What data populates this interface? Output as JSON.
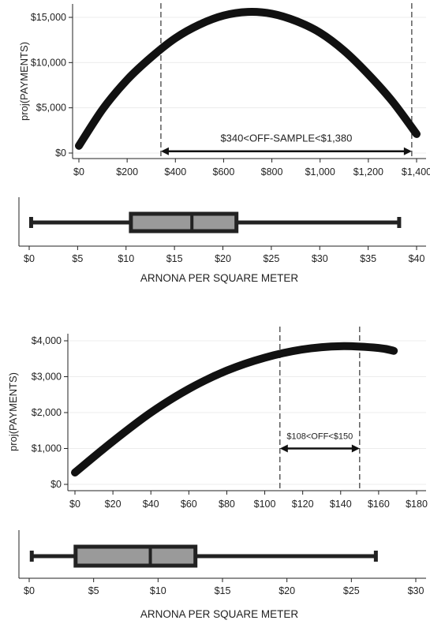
{
  "chart_data": [
    {
      "type": "line",
      "ylabel": "proj(PAYMENTS)",
      "xlim": [
        0,
        1400
      ],
      "ylim": [
        0,
        15000
      ],
      "x_ticks": [
        0,
        200,
        400,
        600,
        800,
        1000,
        1200,
        1400
      ],
      "x_tick_labels": [
        "$0",
        "$200",
        "$400",
        "$600",
        "$800",
        "$1,000",
        "$1,200",
        "$1,400"
      ],
      "y_ticks": [
        0,
        5000,
        10000,
        15000
      ],
      "y_tick_labels": [
        "$0",
        "$5,000",
        "$10,000",
        "$15,000"
      ],
      "grid": true,
      "series": [
        {
          "x": [
            0,
            100,
            200,
            300,
            400,
            500,
            600,
            700,
            800,
            900,
            1000,
            1100,
            1200,
            1300,
            1400
          ],
          "y": [
            800,
            4900,
            8100,
            10600,
            12700,
            14200,
            15200,
            15600,
            15400,
            14600,
            13300,
            11300,
            8700,
            5700,
            2100
          ]
        }
      ],
      "vlines": [
        340,
        1380
      ],
      "annotation": {
        "text": "$340<OFF-SAMPLE<$1,380",
        "x_from": 340,
        "x_to": 1380,
        "y": 200
      }
    },
    {
      "type": "box",
      "xlabel": "ARNONA PER SQUARE METER",
      "xlim": [
        0,
        40
      ],
      "x_ticks": [
        0,
        5,
        10,
        15,
        20,
        25,
        30,
        35,
        40
      ],
      "x_tick_labels": [
        "$0",
        "$5",
        "$10",
        "$15",
        "$20",
        "$25",
        "$30",
        "$35",
        "$40"
      ],
      "min": 0.2,
      "q1": 10.5,
      "median": 16.8,
      "q3": 21.4,
      "max": 38.2
    },
    {
      "type": "line",
      "ylabel": "proj(PAYMENTS)",
      "xlim": [
        0,
        180
      ],
      "ylim": [
        0,
        4000
      ],
      "x_ticks": [
        0,
        20,
        40,
        60,
        80,
        100,
        120,
        140,
        160,
        180
      ],
      "x_tick_labels": [
        "$0",
        "$20",
        "$40",
        "$60",
        "$80",
        "$100",
        "$120",
        "$140",
        "$160",
        "$180"
      ],
      "y_ticks": [
        0,
        1000,
        2000,
        3000,
        4000
      ],
      "y_tick_labels": [
        "$0",
        "$1,000",
        "$2,000",
        "$3,000",
        "$4,000"
      ],
      "grid": true,
      "series": [
        {
          "x": [
            0,
            20,
            40,
            60,
            80,
            100,
            120,
            140,
            160,
            168
          ],
          "y": [
            330,
            1200,
            2000,
            2660,
            3170,
            3530,
            3760,
            3850,
            3800,
            3720
          ]
        }
      ],
      "vlines": [
        108,
        150
      ],
      "annotation": {
        "text": "$108<OFF<$150",
        "x_from": 108,
        "x_to": 150,
        "y": 1000
      }
    },
    {
      "type": "box",
      "xlabel": "ARNONA PER SQUARE METER",
      "xlim": [
        0,
        30
      ],
      "x_ticks": [
        0,
        5,
        10,
        15,
        20,
        25,
        30
      ],
      "x_tick_labels": [
        "$0",
        "$5",
        "$10",
        "$15",
        "$20",
        "$25",
        "$30"
      ],
      "min": 0.2,
      "q1": 3.6,
      "median": 9.4,
      "q3": 12.9,
      "max": 26.9
    }
  ]
}
